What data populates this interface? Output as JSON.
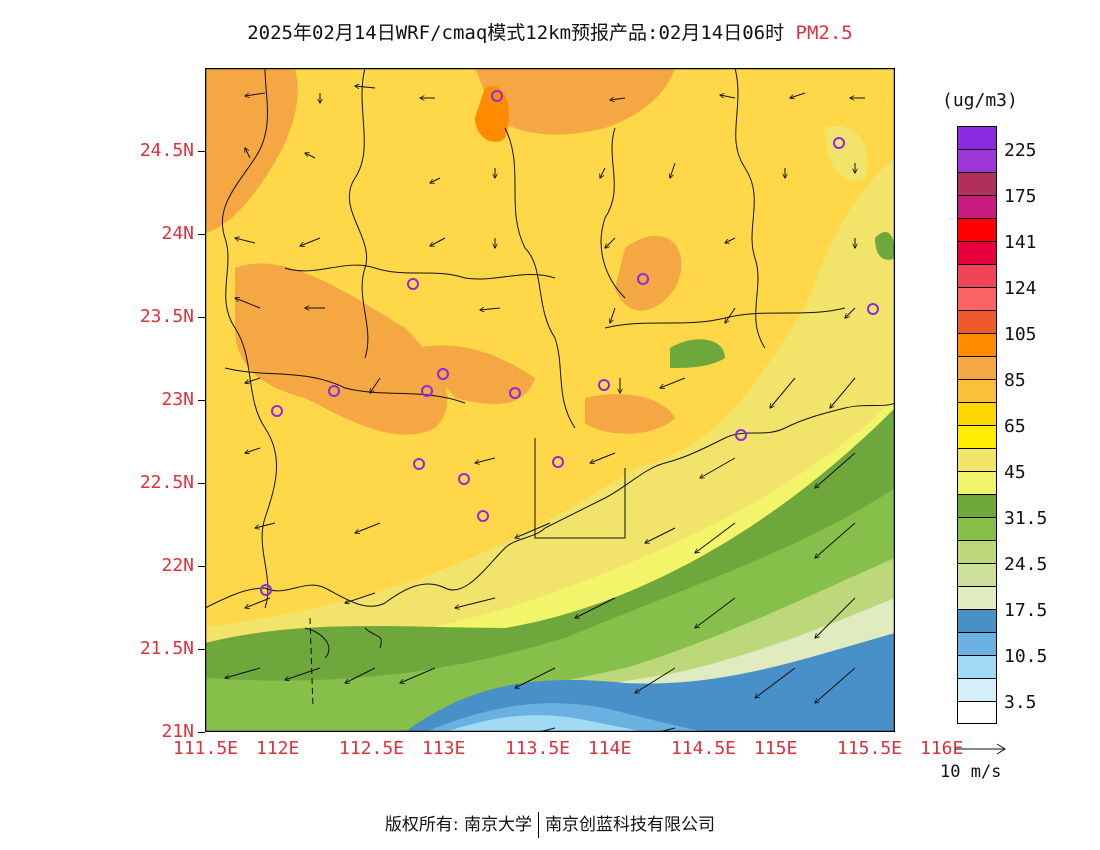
{
  "title": {
    "main": "2025年02月14日WRF/cmaq模式12km预报产品:02月14日06时",
    "pollutant": "PM2.5"
  },
  "axes": {
    "lat_ticks": [
      "24.5N",
      "24N",
      "23.5N",
      "23N",
      "22.5N",
      "22N",
      "21.5N",
      "21N"
    ],
    "lon_ticks": [
      "111.5E",
      "112E",
      "112.5E",
      "113E",
      "113.5E",
      "114E",
      "114.5E",
      "115E",
      "115.5E",
      "116E"
    ]
  },
  "colorbar": {
    "unit": "(ug/m3)",
    "colors": [
      "#8a2be2",
      "#9e37d8",
      "#b0305a",
      "#c81b82",
      "#ff0000",
      "#e8003c",
      "#f0445a",
      "#f86464",
      "#ee5a2a",
      "#ff8c00",
      "#f4a742",
      "#fbbf38",
      "#ffd700",
      "#ffec00",
      "#f2e36a",
      "#f2f56a",
      "#6ea83c",
      "#86c04a",
      "#bcd87a",
      "#cce09a",
      "#e0ecc0",
      "#4a90c8",
      "#6ab0e0",
      "#a0daf4",
      "#d4eefa",
      "#ffffff"
    ],
    "labels": [
      "225",
      "175",
      "141",
      "124",
      "105",
      "85",
      "65",
      "45",
      "31.5",
      "24.5",
      "17.5",
      "10.5",
      "3.5"
    ]
  },
  "wind_legend": "10 m/s",
  "footer": {
    "left": "版权所有: 南京大学",
    "right": "南京创蓝科技有限公司"
  }
}
